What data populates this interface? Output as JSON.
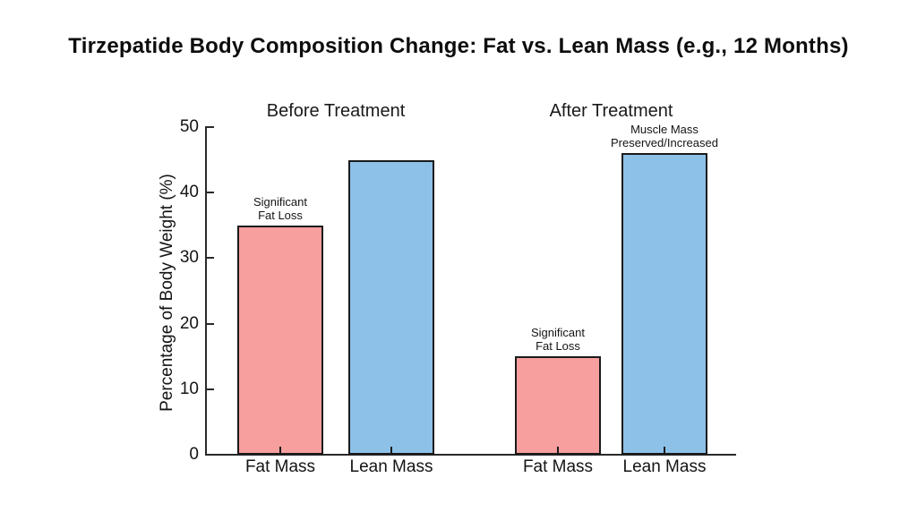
{
  "title": "Tirzepatide Body Composition Change: Fat vs. Lean Mass (e.g., 12 Months)",
  "chart_data": {
    "type": "bar",
    "title": "Tirzepatide Body Composition Change: Fat vs. Lean Mass (e.g., 12 Months)",
    "xlabel": "",
    "ylabel": "Percentage of Body Weight (%)",
    "ylim": [
      0,
      50
    ],
    "yticks": [
      0,
      10,
      20,
      30,
      40,
      50
    ],
    "grid": false,
    "legend": "none",
    "bar_edge_color": "#1a1a1a",
    "background_color": "#ffffff",
    "groups": [
      {
        "label": "Before Treatment",
        "bars": [
          {
            "category": "Fat Mass",
            "value": 35,
            "color": "#F79E9E",
            "annotation": "Significant\nFat Loss"
          },
          {
            "category": "Lean Mass",
            "value": 45,
            "color": "#8DC1E8",
            "annotation": ""
          }
        ]
      },
      {
        "label": "After Treatment",
        "bars": [
          {
            "category": "Fat Mass",
            "value": 15,
            "color": "#F79E9E",
            "annotation": "Significant\nFat Loss"
          },
          {
            "category": "Lean Mass",
            "value": 46,
            "color": "#8DC1E8",
            "annotation": "Muscle Mass\nPreserved/Increased"
          }
        ]
      }
    ]
  }
}
